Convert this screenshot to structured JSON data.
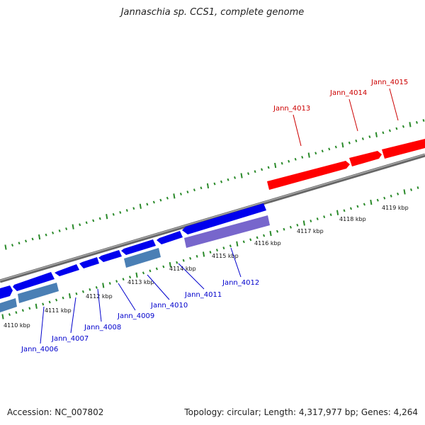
{
  "header": {
    "title": "Jannaschia sp. CCS1, complete genome"
  },
  "footer": {
    "accession": "Accession: NC_007802",
    "summary": "Topology: circular; Length: 4,317,977 bp; Genes: 4,264"
  },
  "colors": {
    "forward_gene": "#ff0000",
    "reverse_gene": "#0000ee",
    "reverse_gene_alt": "#4a7fb5",
    "reverse_gene_purple": "#7766cc",
    "backbone": "#888888",
    "ticks": "#2a8a2a",
    "forward_label": "#cc0000",
    "reverse_label": "#0000cc"
  },
  "scale_labels": [
    "4110 kbp",
    "4111 kbp",
    "4112 kbp",
    "4113 kbp",
    "4114 kbp",
    "4115 kbp",
    "4116 kbp",
    "4117 kbp",
    "4118 kbp",
    "4119 kbp"
  ],
  "forward_labels": [
    "Jann_4013",
    "Jann_4014",
    "Jann_4015"
  ],
  "reverse_labels": [
    "Jann_4006",
    "Jann_4007",
    "Jann_4008",
    "Jann_4009",
    "Jann_4010",
    "Jann_4011",
    "Jann_4012"
  ]
}
